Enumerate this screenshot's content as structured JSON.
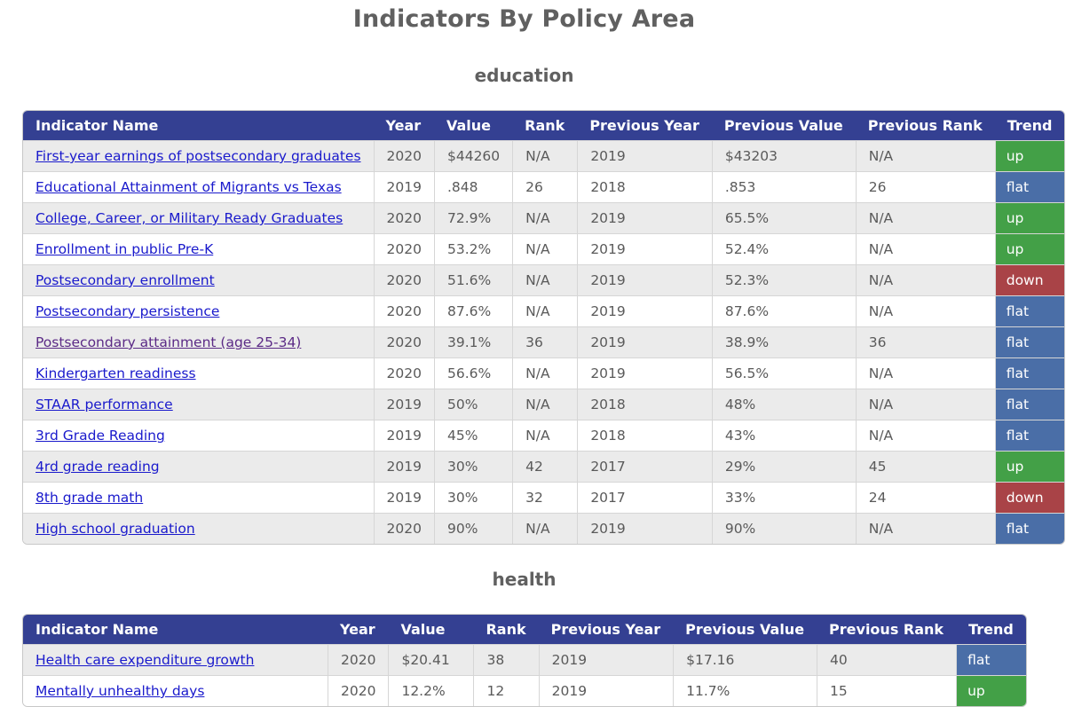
{
  "page_title": "Indicators By Policy Area",
  "colors": {
    "header": "#344092",
    "up": "#43a047",
    "flat": "#4a6ea7",
    "down": "#a94347",
    "link": "#1a1acc",
    "visited_link": "#5b2a86"
  },
  "columns": [
    "Indicator Name",
    "Year",
    "Value",
    "Rank",
    "Previous Year",
    "Previous Value",
    "Previous Rank",
    "Trend"
  ],
  "sections": [
    {
      "name": "education",
      "rows": [
        {
          "indicator": "First-year earnings of postsecondary graduates",
          "year": "2020",
          "value": "$44260",
          "rank": "N/A",
          "prev_year": "2019",
          "prev_value": "$43203",
          "prev_rank": "N/A",
          "trend": "up"
        },
        {
          "indicator": "Educational Attainment of Migrants vs Texas",
          "year": "2019",
          "value": ".848",
          "rank": "26",
          "prev_year": "2018",
          "prev_value": ".853",
          "prev_rank": "26",
          "trend": "flat"
        },
        {
          "indicator": "College, Career, or Military Ready Graduates",
          "year": "2020",
          "value": "72.9%",
          "rank": "N/A",
          "prev_year": "2019",
          "prev_value": "65.5%",
          "prev_rank": "N/A",
          "trend": "up"
        },
        {
          "indicator": "Enrollment in public Pre-K",
          "year": "2020",
          "value": "53.2%",
          "rank": "N/A",
          "prev_year": "2019",
          "prev_value": "52.4%",
          "prev_rank": "N/A",
          "trend": "up"
        },
        {
          "indicator": "Postsecondary enrollment",
          "year": "2020",
          "value": "51.6%",
          "rank": "N/A",
          "prev_year": "2019",
          "prev_value": "52.3%",
          "prev_rank": "N/A",
          "trend": "down"
        },
        {
          "indicator": "Postsecondary persistence",
          "year": "2020",
          "value": "87.6%",
          "rank": "N/A",
          "prev_year": "2019",
          "prev_value": "87.6%",
          "prev_rank": "N/A",
          "trend": "flat"
        },
        {
          "indicator": "Postsecondary attainment (age 25-34)",
          "year": "2020",
          "value": "39.1%",
          "rank": "36",
          "prev_year": "2019",
          "prev_value": "38.9%",
          "prev_rank": "36",
          "trend": "flat",
          "visited": true
        },
        {
          "indicator": "Kindergarten readiness",
          "year": "2020",
          "value": "56.6%",
          "rank": "N/A",
          "prev_year": "2019",
          "prev_value": "56.5%",
          "prev_rank": "N/A",
          "trend": "flat"
        },
        {
          "indicator": "STAAR performance",
          "year": "2019",
          "value": "50%",
          "rank": "N/A",
          "prev_year": "2018",
          "prev_value": "48%",
          "prev_rank": "N/A",
          "trend": "flat"
        },
        {
          "indicator": "3rd Grade Reading",
          "year": "2019",
          "value": "45%",
          "rank": "N/A",
          "prev_year": "2018",
          "prev_value": "43%",
          "prev_rank": "N/A",
          "trend": "flat"
        },
        {
          "indicator": "4rd grade reading",
          "year": "2019",
          "value": "30%",
          "rank": "42",
          "prev_year": "2017",
          "prev_value": "29%",
          "prev_rank": "45",
          "trend": "up"
        },
        {
          "indicator": "8th grade math",
          "year": "2019",
          "value": "30%",
          "rank": "32",
          "prev_year": "2017",
          "prev_value": "33%",
          "prev_rank": "24",
          "trend": "down"
        },
        {
          "indicator": "High school graduation",
          "year": "2020",
          "value": "90%",
          "rank": "N/A",
          "prev_year": "2019",
          "prev_value": "90%",
          "prev_rank": "N/A",
          "trend": "flat"
        }
      ]
    },
    {
      "name": "health",
      "rows": [
        {
          "indicator": "Health care expenditure growth",
          "year": "2020",
          "value": "$20.41",
          "rank": "38",
          "prev_year": "2019",
          "prev_value": "$17.16",
          "prev_rank": "40",
          "trend": "flat"
        },
        {
          "indicator": "Mentally unhealthy days",
          "year": "2020",
          "value": "12.2%",
          "rank": "12",
          "prev_year": "2019",
          "prev_value": "11.7%",
          "prev_rank": "15",
          "trend": "up"
        }
      ]
    }
  ]
}
